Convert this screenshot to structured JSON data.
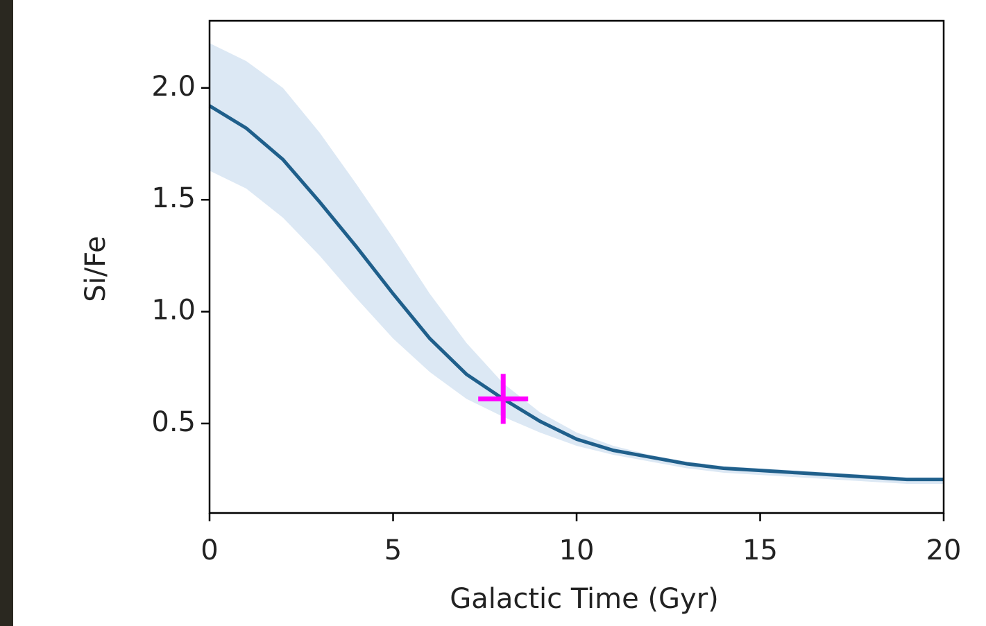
{
  "chart_data": {
    "type": "line",
    "x_label": "Galactic Time (Gyr)",
    "y_label": "Si/Fe",
    "x": [
      0,
      1,
      2,
      3,
      4,
      5,
      6,
      7,
      8,
      9,
      10,
      11,
      12,
      13,
      14,
      15,
      16,
      17,
      18,
      19,
      20
    ],
    "series": [
      {
        "color": "#1f5f8b",
        "values": [
          1.92,
          1.82,
          1.68,
          1.49,
          1.29,
          1.08,
          0.88,
          0.72,
          0.61,
          0.51,
          0.43,
          0.38,
          0.35,
          0.32,
          0.3,
          0.29,
          0.28,
          0.27,
          0.26,
          0.25,
          0.25
        ]
      }
    ],
    "band": {
      "color": "#dce8f4",
      "upper": [
        2.2,
        2.12,
        2.0,
        1.8,
        1.57,
        1.33,
        1.08,
        0.86,
        0.68,
        0.55,
        0.46,
        0.4,
        0.36,
        0.33,
        0.31,
        0.3,
        0.29,
        0.28,
        0.27,
        0.26,
        0.26
      ],
      "lower": [
        1.63,
        1.55,
        1.42,
        1.25,
        1.06,
        0.88,
        0.73,
        0.61,
        0.53,
        0.46,
        0.4,
        0.36,
        0.33,
        0.3,
        0.28,
        0.27,
        0.26,
        0.25,
        0.24,
        0.23,
        0.23
      ]
    },
    "marker": {
      "x": 8,
      "y": 0.61,
      "color": "#ff00ff"
    },
    "xlim": [
      0,
      20
    ],
    "xticks": [
      0,
      5,
      10,
      15,
      20
    ],
    "ylim": [
      0.1,
      2.3
    ],
    "yticks": [
      {
        "value": 0.5,
        "label": "0.5"
      },
      {
        "value": 1.0,
        "label": "1.0"
      },
      {
        "value": 1.5,
        "label": "1.5"
      },
      {
        "value": 2.0,
        "label": "2.0"
      }
    ],
    "grid": false
  }
}
